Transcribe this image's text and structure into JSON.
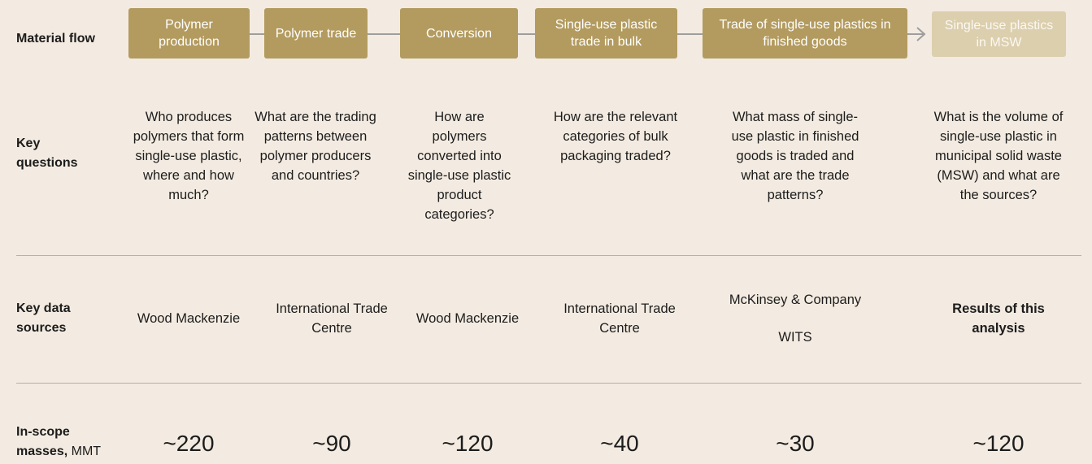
{
  "rows": {
    "flow": "Material flow",
    "questions": "Key questions",
    "sources": "Key data sources",
    "masses": {
      "label": "In-scope masses,",
      "unit": "MMT"
    }
  },
  "stages": [
    {
      "label": "Polymer production",
      "question": "Who produces polymers that form single-use plastic, where and how much?",
      "sources": [
        "Wood Mackenzie"
      ],
      "mass": "~220"
    },
    {
      "label": "Polymer trade",
      "question": "What are the trading patterns between polymer producers and countries?",
      "sources": [
        "International Trade Centre"
      ],
      "mass": "~90"
    },
    {
      "label": "Conversion",
      "question": "How are polymers converted into single-use plastic product categories?",
      "sources": [
        "Wood Mackenzie"
      ],
      "mass": "~120"
    },
    {
      "label": "Single-use plastic trade in bulk",
      "question": "How are the relevant categories of bulk packaging traded?",
      "sources": [
        "International Trade Centre"
      ],
      "mass": "~40"
    },
    {
      "label": "Trade of single-use plastics in finished goods",
      "question": "What mass of single-use plastic in finished goods is traded and what are the trade patterns?",
      "sources": [
        "McKinsey & Company",
        "WITS"
      ],
      "mass": "~30"
    },
    {
      "label": "Single-use plastics in MSW",
      "question": "What is the volume of single-use plastic in municipal solid waste (MSW) and what are the sources?",
      "sources": [
        "Results of this analysis"
      ],
      "mass": "~120"
    }
  ]
}
